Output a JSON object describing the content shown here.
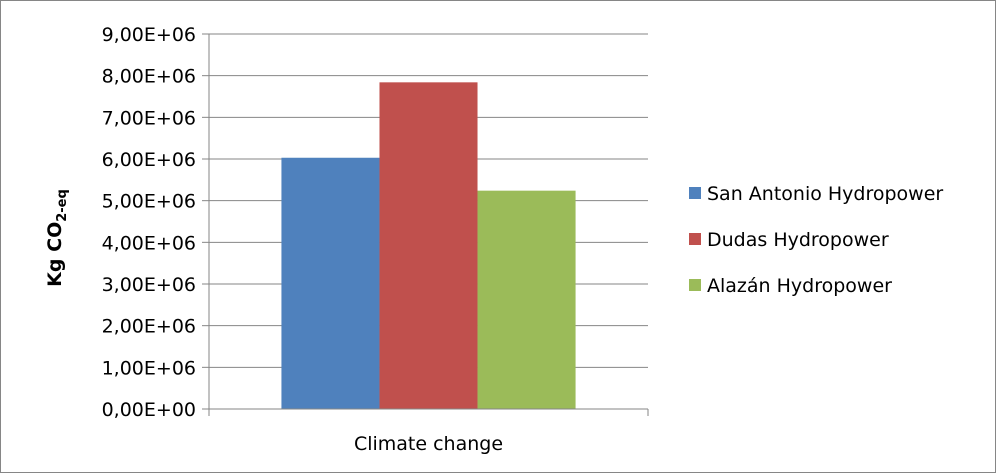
{
  "chart_data": {
    "type": "bar",
    "categories": [
      "Climate change"
    ],
    "series": [
      {
        "name": "San Antonio Hydropower",
        "values": [
          6030000
        ],
        "color": "#4F81BD"
      },
      {
        "name": "Dudas Hydropower",
        "values": [
          7840000
        ],
        "color": "#C0504D"
      },
      {
        "name": "Alazán Hydropower",
        "values": [
          5240000
        ],
        "color": "#9BBB59"
      }
    ],
    "title": "",
    "xlabel": "",
    "ylabel": {
      "main": "Kg CO",
      "subscript": "2-eq"
    },
    "ylim": [
      0,
      9000000
    ],
    "yticks": [
      "0,00E+00",
      "1,00E+06",
      "2,00E+06",
      "3,00E+06",
      "4,00E+06",
      "5,00E+06",
      "6,00E+06",
      "7,00E+06",
      "8,00E+06",
      "9,00E+06"
    ],
    "grid": true,
    "legend_position": "right"
  }
}
